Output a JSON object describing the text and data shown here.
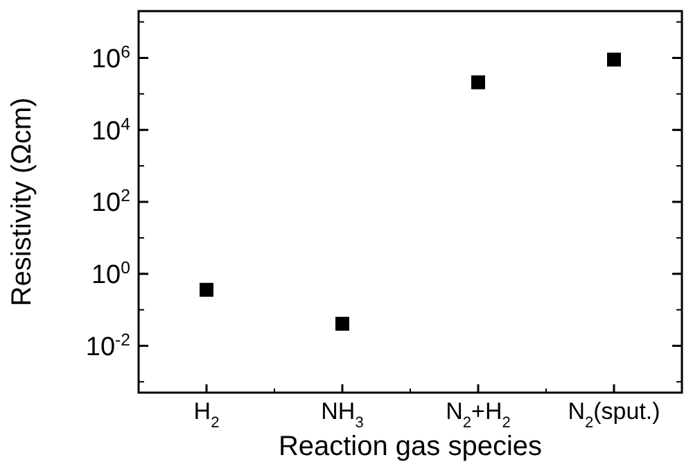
{
  "chart_data": {
    "type": "scatter",
    "xlabel": "Reaction gas species",
    "ylabel": "Resistivity (Ωcm)",
    "categories": [
      "H$_{2}$",
      "NH$_{3}$",
      "N$_{2}$+H$_{2}$",
      "N$_{2}$(sput.)"
    ],
    "series": [
      {
        "color": "#000000",
        "values": [
          0.36,
          0.041,
          210000,
          900000
        ]
      }
    ],
    "log": "y",
    "marker": "square",
    "grid": false,
    "ylim": [
      0.0005,
      20000000
    ],
    "yticks": [
      {
        "value": 0.01,
        "label": "10$^{-2}$"
      },
      {
        "value": 1,
        "label": "10$^{0}$"
      },
      {
        "value": 100,
        "label": "10$^{2}$"
      },
      {
        "value": 10000,
        "label": "10$^{4}$"
      },
      {
        "value": 1000000,
        "label": "10$^{6}$"
      }
    ]
  }
}
